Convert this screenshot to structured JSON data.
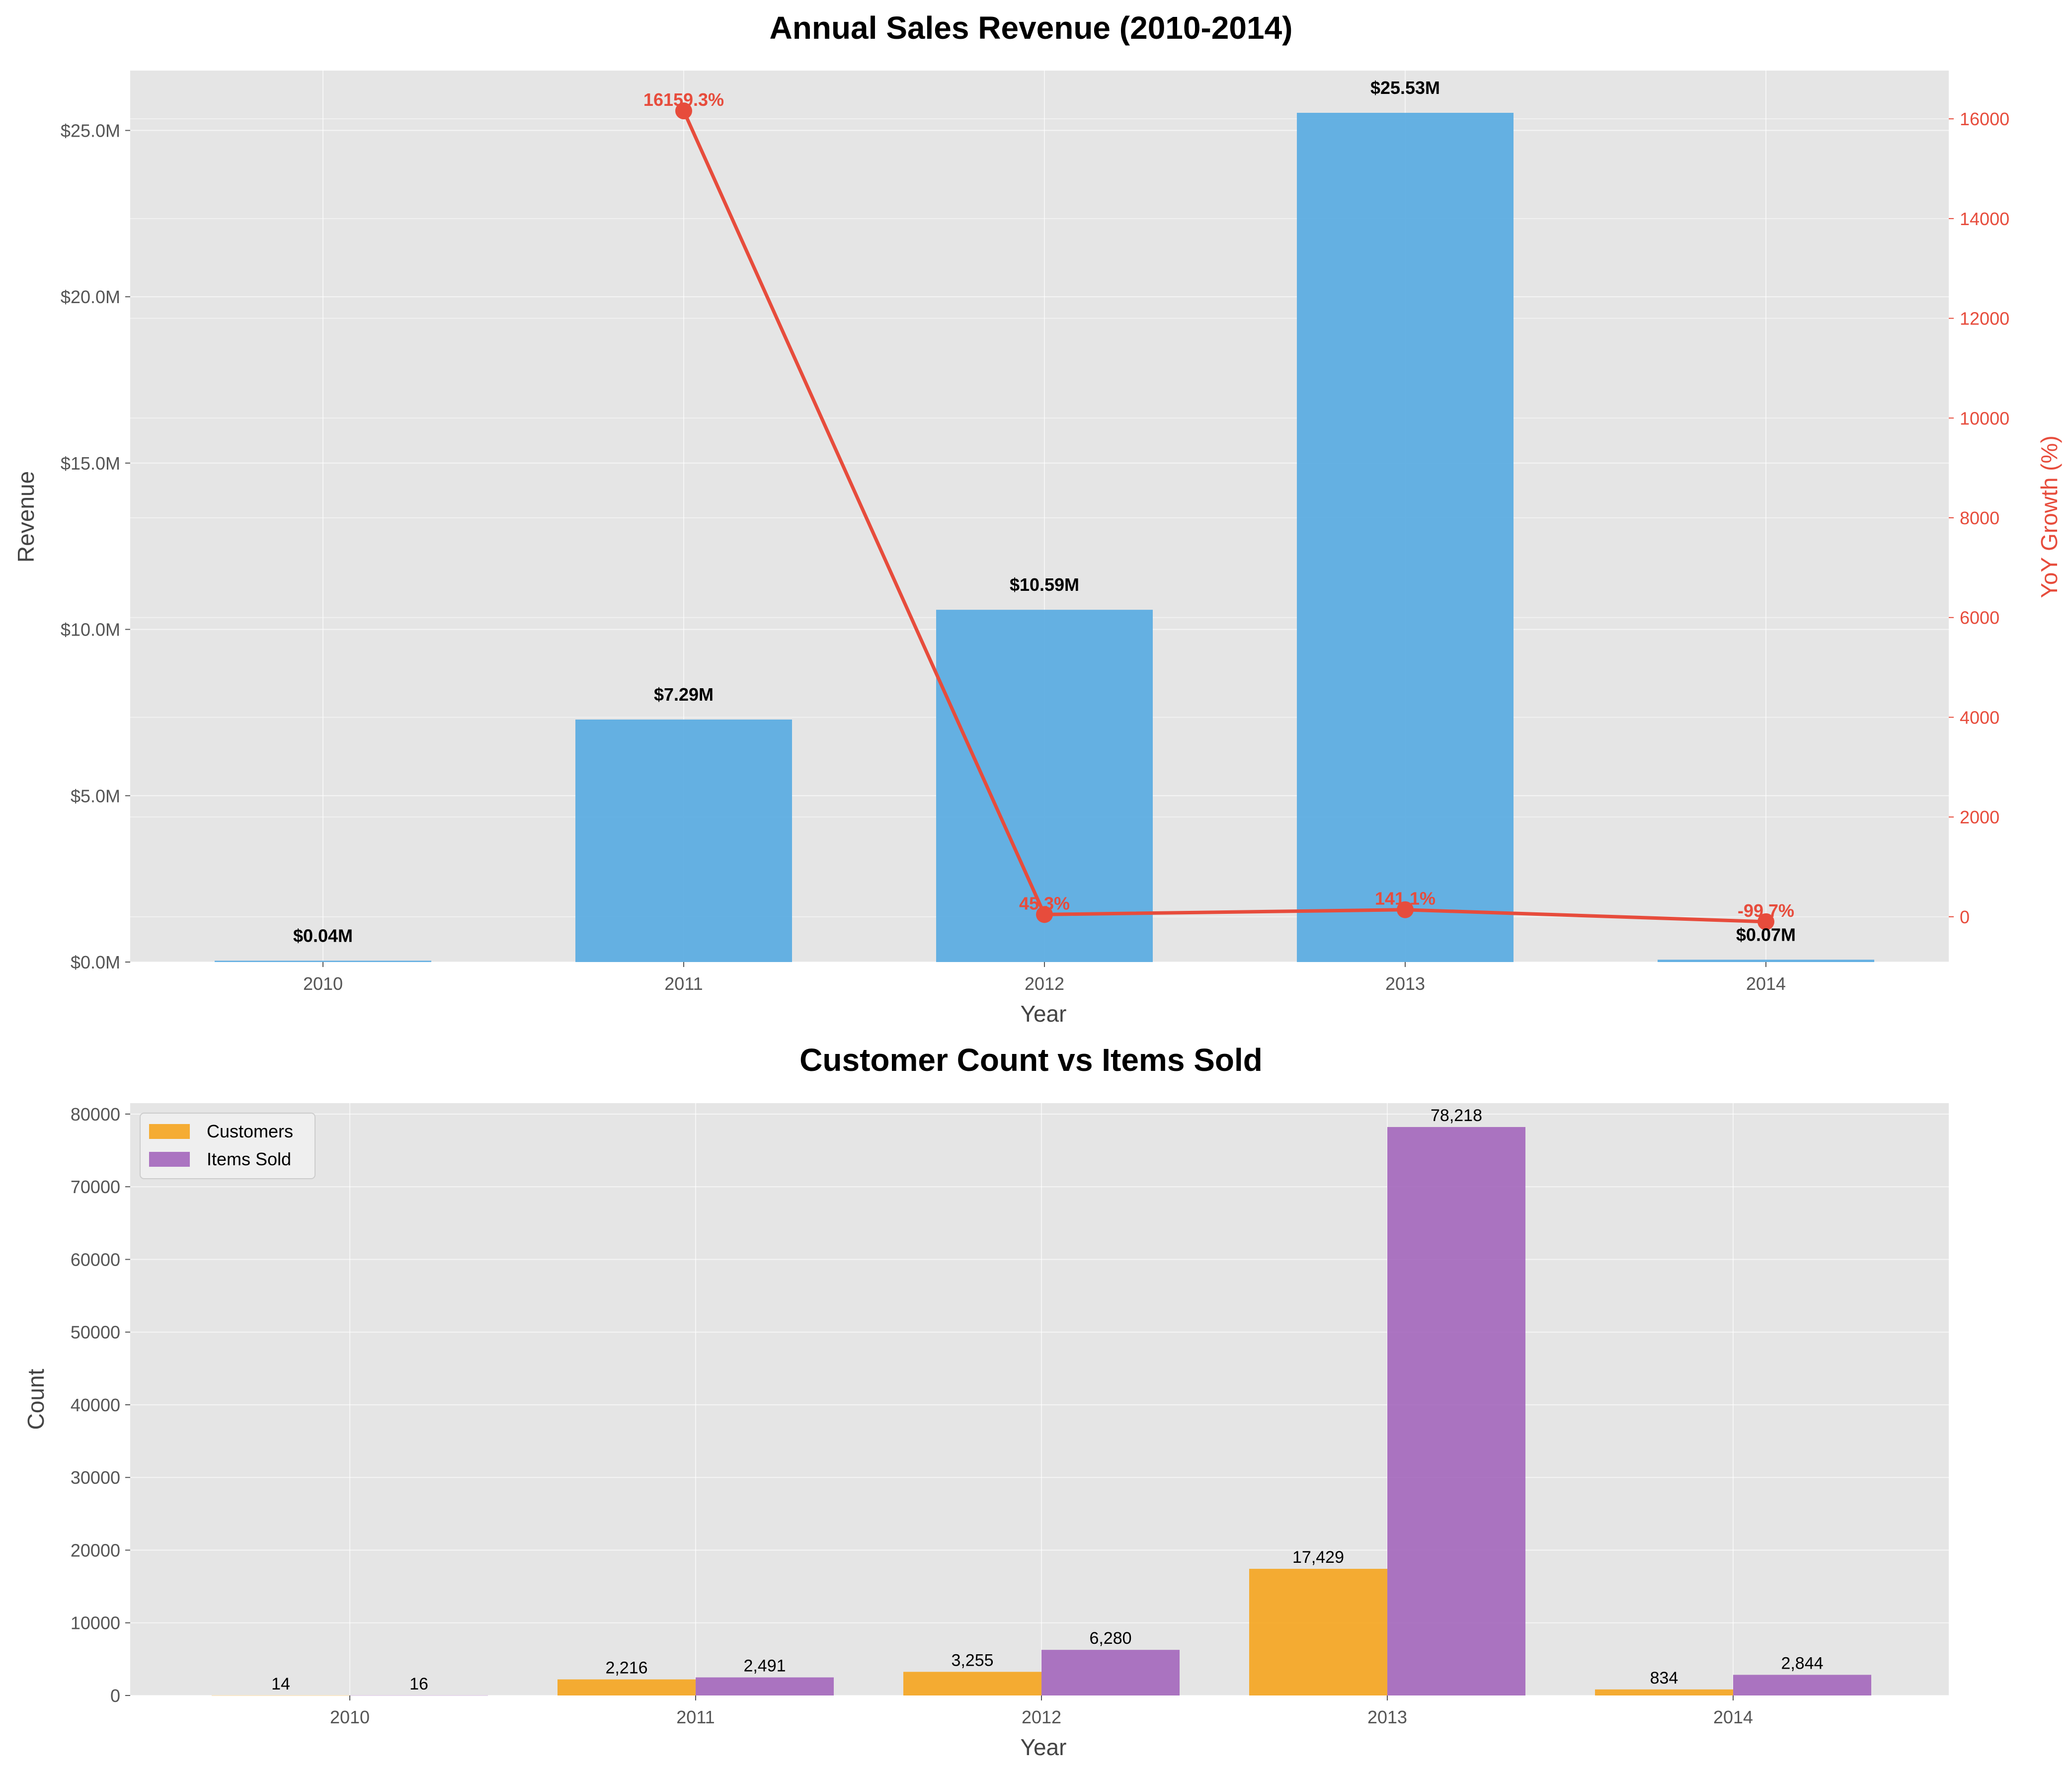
{
  "chart_data": [
    {
      "type": "bar",
      "title": "Annual Sales Revenue (2010-2014)",
      "xlabel": "Year",
      "ylabel": "Revenue",
      "y2label": "YoY Growth (%)",
      "categories": [
        "2010",
        "2011",
        "2012",
        "2013",
        "2014"
      ],
      "series": [
        {
          "values": [
            0.04,
            7.29,
            10.59,
            25.53,
            0.07
          ],
          "labels": [
            "$0.04M",
            "$7.29M",
            "$10.59M",
            "$25.53M",
            "$0.07M"
          ],
          "color": "#5DADE2",
          "type": "bar"
        },
        {
          "values": [
            null,
            16159.3,
            45.3,
            141.1,
            -99.7
          ],
          "labels": [
            "",
            "16159.3%",
            "45.3%",
            "141.1%",
            "-99.7%"
          ],
          "color": "#E74C3C",
          "type": "line",
          "axis": "right"
        }
      ],
      "yticks": [
        "$0.0M",
        "$5.0M",
        "$10.0M",
        "$15.0M",
        "$20.0M",
        "$25.0M"
      ],
      "ytick_values": [
        0,
        5,
        10,
        15,
        20,
        25
      ],
      "ylim": [
        0,
        26.8
      ],
      "y2ticks": [
        "0",
        "2000",
        "4000",
        "6000",
        "8000",
        "10000",
        "12000",
        "14000",
        "16000"
      ],
      "y2tick_values": [
        0,
        2000,
        4000,
        6000,
        8000,
        10000,
        12000,
        14000,
        16000
      ],
      "y2lim": [
        -908,
        16968
      ],
      "grid": true
    },
    {
      "type": "bar",
      "title": "Customer Count vs Items Sold",
      "xlabel": "Year",
      "ylabel": "Count",
      "categories": [
        "2010",
        "2011",
        "2012",
        "2013",
        "2014"
      ],
      "series": [
        {
          "name": "Customers",
          "values": [
            14,
            2216,
            3255,
            17429,
            834
          ],
          "labels": [
            "14",
            "2,216",
            "3,255",
            "17,429",
            "834"
          ],
          "color": "#F5A623"
        },
        {
          "name": "Items Sold",
          "values": [
            16,
            2491,
            6280,
            78218,
            2844
          ],
          "labels": [
            "16",
            "2,491",
            "6,280",
            "78,218",
            "2,844"
          ],
          "color": "#A569BD"
        }
      ],
      "yticks": [
        "0",
        "10000",
        "20000",
        "30000",
        "40000",
        "50000",
        "60000",
        "70000",
        "80000"
      ],
      "ytick_values": [
        0,
        10000,
        20000,
        30000,
        40000,
        50000,
        60000,
        70000,
        80000
      ],
      "ylim": [
        0,
        81500
      ],
      "legend": "top-left",
      "grid": true
    }
  ]
}
